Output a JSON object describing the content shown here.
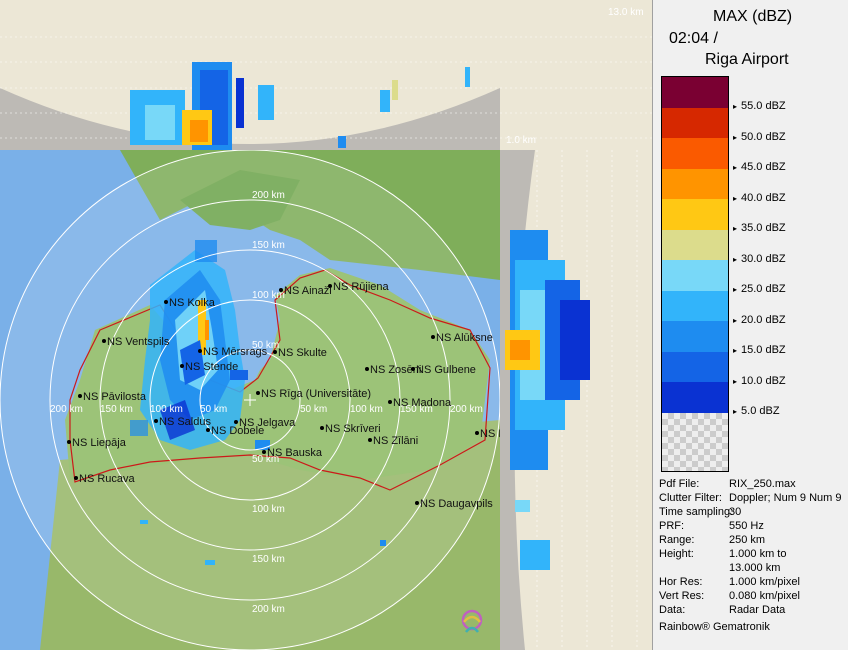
{
  "header": {
    "product": "MAX (dBZ)",
    "time": "02:04 /",
    "site": "Riga Airport"
  },
  "top_height_label": "13.0 km",
  "side_height_label": "1.0 km",
  "legend": {
    "unit": "dBZ",
    "bands": [
      {
        "color": "#7a0032"
      },
      {
        "color": "#d62800"
      },
      {
        "color": "#fa5a00"
      },
      {
        "color": "#ff9400"
      },
      {
        "color": "#ffc814"
      },
      {
        "color": "#dcdc8c"
      },
      {
        "color": "#78d8f8"
      },
      {
        "color": "#32b4fa"
      },
      {
        "color": "#1e8cf0"
      },
      {
        "color": "#1464e6"
      },
      {
        "color": "#0a32d2"
      }
    ],
    "ticks": [
      "55.0 dBZ",
      "50.0 dBZ",
      "45.0 dBZ",
      "40.0 dBZ",
      "35.0 dBZ",
      "30.0 dBZ",
      "25.0 dBZ",
      "20.0 dBZ",
      "15.0 dBZ",
      "10.0 dBZ",
      "5.0 dBZ"
    ]
  },
  "metadata": [
    {
      "key": "Pdf File:",
      "value": "RIX_250.max"
    },
    {
      "key": "Clutter Filter:",
      "value": "Doppler; Num 9 Num 9"
    },
    {
      "key": "Time sampling:",
      "value": "30"
    },
    {
      "key": "PRF:",
      "value": "550 Hz"
    },
    {
      "key": "Range:",
      "value": "250 km"
    },
    {
      "key": "Height:",
      "value": "1.000 km to"
    },
    {
      "key": "",
      "value": "13.000 km"
    },
    {
      "key": "Hor Res:",
      "value": "1.000 km/pixel"
    },
    {
      "key": "Vert Res:",
      "value": "0.080 km/pixel"
    },
    {
      "key": "Data:",
      "value": "Radar Data"
    }
  ],
  "credit": "Rainbow® Gematronik",
  "range_labels": [
    "50 km",
    "100 km",
    "150 km",
    "200 km"
  ],
  "cities": [
    {
      "name": "NS Kolka"
    },
    {
      "name": "NS Ainaži"
    },
    {
      "name": "NS Rūjiena"
    },
    {
      "name": "NS Ventspils"
    },
    {
      "name": "NS Mērsrags"
    },
    {
      "name": "NS Skulte"
    },
    {
      "name": "NS Alūksne"
    },
    {
      "name": "NS Stende"
    },
    {
      "name": "NS Zosēni"
    },
    {
      "name": "NS Gulbene"
    },
    {
      "name": "NS Pāvilosta"
    },
    {
      "name": "NS Rīga (Universitāte)"
    },
    {
      "name": "NS Madona"
    },
    {
      "name": "NS Saldus"
    },
    {
      "name": "NS Jelgava"
    },
    {
      "name": "NS Dobele"
    },
    {
      "name": "NS Skrīveri"
    },
    {
      "name": "NS Liepāja"
    },
    {
      "name": "NS Zīlāni"
    },
    {
      "name": "NS Rēzekne"
    },
    {
      "name": "NS Bauska"
    },
    {
      "name": "NS Rucava"
    },
    {
      "name": "NS Daugavpils"
    }
  ]
}
